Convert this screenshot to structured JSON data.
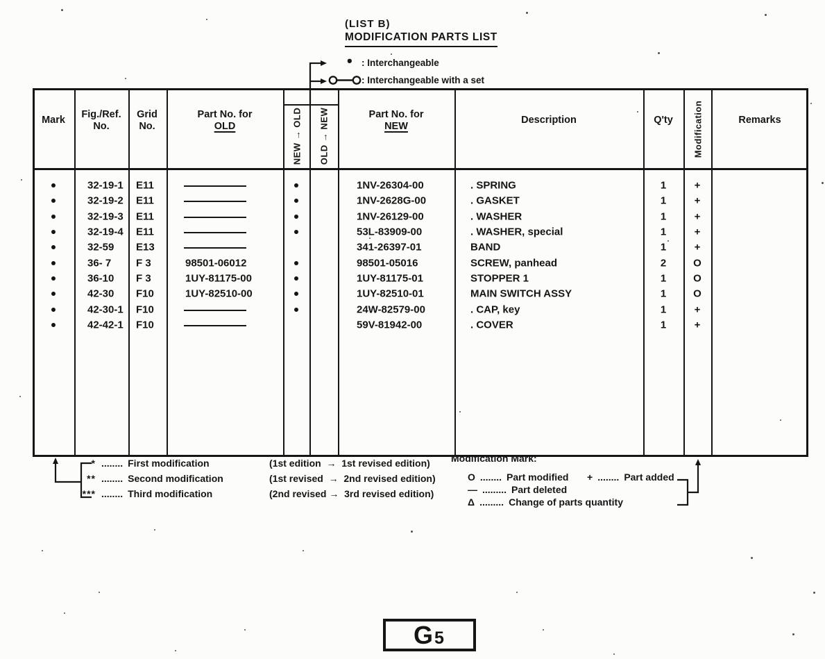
{
  "page": {
    "list_label": "(LIST B)",
    "title": "MODIFICATION PARTS LIST",
    "legend": [
      {
        "symbol": "•",
        "label": ": Interchangeable"
      },
      {
        "symbol": "O—O",
        "label": ": Interchangeable with a set"
      }
    ],
    "page_number": "G5"
  },
  "table": {
    "headers": {
      "mark": "Mark",
      "fig_ref": [
        "Fig./Ref.",
        "No."
      ],
      "grid": [
        "Grid",
        "No."
      ],
      "part_old": [
        "Part No. for",
        "OLD"
      ],
      "new_to_old": "NEW → OLD",
      "old_to_new": "OLD → NEW",
      "part_new": [
        "Part No. for",
        "NEW"
      ],
      "description": "Description",
      "qty": "Q'ty",
      "modification": "Modification",
      "remarks": "Remarks"
    },
    "rows": [
      {
        "mark": "•",
        "fig": "32-19-1",
        "grid": "E11",
        "part_old": "———",
        "new_to_old": "•",
        "old_to_new": "",
        "part_new": "1NV-26304-00",
        "description": ". SPRING",
        "qty": "1",
        "mod": "+",
        "remarks": ""
      },
      {
        "mark": "•",
        "fig": "32-19-2",
        "grid": "E11",
        "part_old": "———",
        "new_to_old": "•",
        "old_to_new": "",
        "part_new": "1NV-2628G-00",
        "description": ". GASKET",
        "qty": "1",
        "mod": "+",
        "remarks": ""
      },
      {
        "mark": "•",
        "fig": "32-19-3",
        "grid": "E11",
        "part_old": "———",
        "new_to_old": "•",
        "old_to_new": "",
        "part_new": "1NV-26129-00",
        "description": ". WASHER",
        "qty": "1",
        "mod": "+",
        "remarks": ""
      },
      {
        "mark": "•",
        "fig": "32-19-4",
        "grid": "E11",
        "part_old": "———",
        "new_to_old": "•",
        "old_to_new": "",
        "part_new": "53L-83909-00",
        "description": ". WASHER, special",
        "qty": "1",
        "mod": "+",
        "remarks": ""
      },
      {
        "mark": "•",
        "fig": "32-59",
        "grid": "E13",
        "part_old": "———",
        "new_to_old": "",
        "old_to_new": "",
        "part_new": "341-26397-01",
        "description": "BAND",
        "qty": "1",
        "mod": "+",
        "remarks": ""
      },
      {
        "mark": "•",
        "fig": "36- 7",
        "grid": "F 3",
        "part_old": "98501-06012",
        "new_to_old": "•",
        "old_to_new": "",
        "part_new": "98501-05016",
        "description": "SCREW, panhead",
        "qty": "2",
        "mod": "O",
        "remarks": ""
      },
      {
        "mark": "•",
        "fig": "36-10",
        "grid": "F 3",
        "part_old": "1UY-81175-00",
        "new_to_old": "•",
        "old_to_new": "",
        "part_new": "1UY-81175-01",
        "description": "STOPPER 1",
        "qty": "1",
        "mod": "O",
        "remarks": ""
      },
      {
        "mark": "•",
        "fig": "42-30",
        "grid": "F10",
        "part_old": "1UY-82510-00",
        "new_to_old": "•",
        "old_to_new": "",
        "part_new": "1UY-82510-01",
        "description": "MAIN SWITCH ASSY",
        "qty": "1",
        "mod": "O",
        "remarks": ""
      },
      {
        "mark": "•",
        "fig": "42-30-1",
        "grid": "F10",
        "part_old": "———",
        "new_to_old": "•",
        "old_to_new": "",
        "part_new": "24W-82579-00",
        "description": ". CAP, key",
        "qty": "1",
        "mod": "+",
        "remarks": ""
      },
      {
        "mark": "•",
        "fig": "42-42-1",
        "grid": "F10",
        "part_old": "———",
        "new_to_old": "",
        "old_to_new": "",
        "part_new": "59V-81942-00",
        "description": ". COVER",
        "qty": "1",
        "mod": "+",
        "remarks": ""
      }
    ]
  },
  "footnotes": {
    "left": [
      {
        "symbol": "*",
        "dots": "........",
        "label": "First modification",
        "detail": "(1st edition  →  1st revised edition)"
      },
      {
        "symbol": "**",
        "dots": "........",
        "label": "Second modification",
        "detail": "(1st revised  →  2nd revised edition)"
      },
      {
        "symbol": "***",
        "dots": "........",
        "label": "Third modification",
        "detail": "(2nd revised →  3rd revised edition)"
      }
    ],
    "right": {
      "title": "Modification Mark:",
      "items": [
        {
          "symbol": "O",
          "dots": "........",
          "label": "Part modified"
        },
        {
          "symbol": "+",
          "dots": "........",
          "label": "Part added"
        },
        {
          "symbol": "—",
          "dots": ".........",
          "label": "Part deleted"
        },
        {
          "symbol": "Δ",
          "dots": ".........",
          "label": "Change of parts quantity"
        }
      ]
    }
  }
}
